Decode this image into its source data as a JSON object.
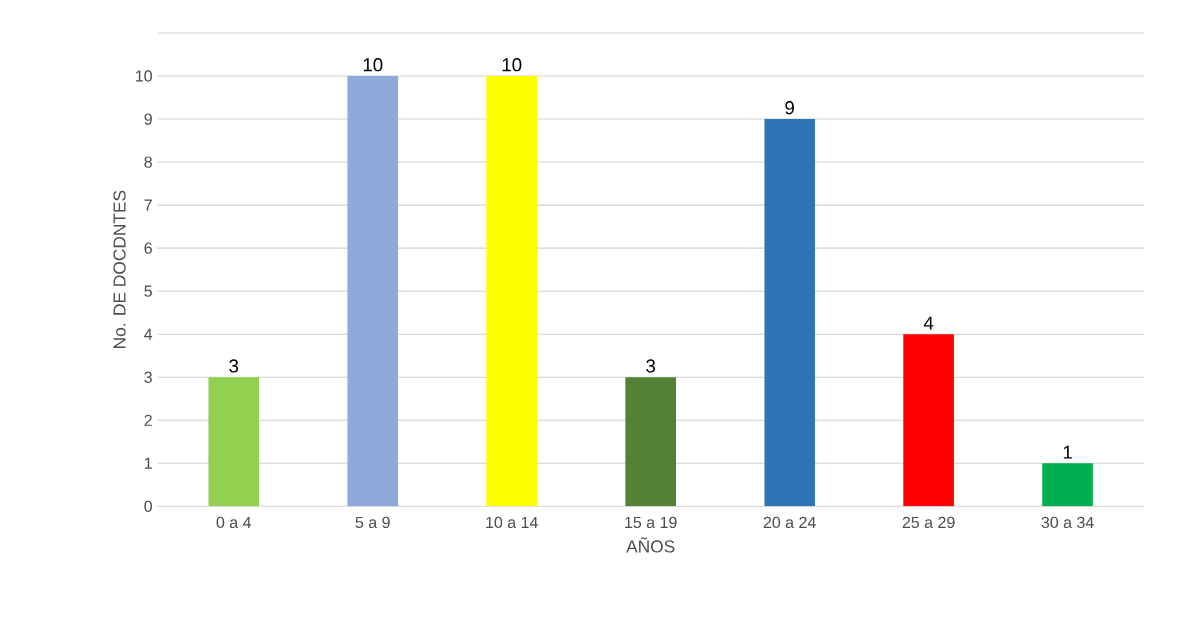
{
  "chart_data": {
    "type": "bar",
    "xlabel": "AÑOS",
    "ylabel": "No. DE DOCDNTES",
    "categories": [
      "0 a 4",
      "5 a 9",
      "10 a 14",
      "15 a 19",
      "20 a 24",
      "25 a 29",
      "30 a 34"
    ],
    "values": [
      3,
      10,
      10,
      3,
      9,
      4,
      1
    ],
    "colors": [
      "#92d050",
      "#8eaadb",
      "#ffff00",
      "#548235",
      "#2e75b6",
      "#ff0000",
      "#00b050"
    ],
    "ylim": [
      0,
      11
    ],
    "yticks": [
      0,
      1,
      2,
      3,
      4,
      5,
      6,
      7,
      8,
      9,
      10,
      {
        "value": 11,
        "label": null
      }
    ],
    "grid": "y",
    "data_labels": true
  }
}
